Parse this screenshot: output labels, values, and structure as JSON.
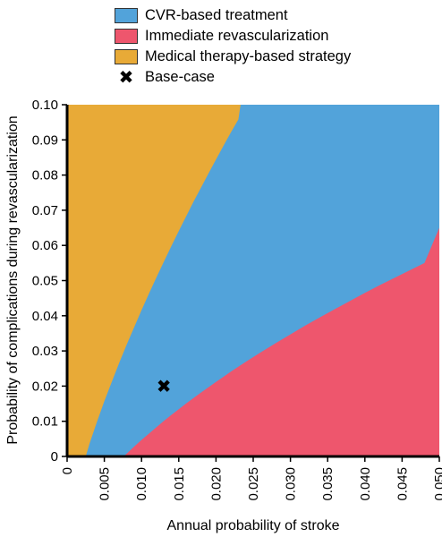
{
  "legend": {
    "items": [
      {
        "label": "CVR-based treatment",
        "color": "#52a3da",
        "kind": "swatch",
        "icon": ""
      },
      {
        "label": "Immediate revascularization",
        "color": "#ee566d",
        "kind": "swatch",
        "icon": ""
      },
      {
        "label": "Medical therapy-based strategy",
        "color": "#e8aa37",
        "kind": "swatch",
        "icon": ""
      },
      {
        "label": "Base-case",
        "color": "#000000",
        "kind": "marker",
        "icon": "✖"
      }
    ]
  },
  "chart_data": {
    "type": "area",
    "title": "",
    "xlabel": "Annual probability of stroke",
    "ylabel": "Probability of complications during revascularization",
    "xlim": [
      0,
      0.05
    ],
    "ylim": [
      0,
      0.1
    ],
    "xticks": [
      "0",
      "0.005",
      "0.010",
      "0.015",
      "0.020",
      "0.025",
      "0.030",
      "0.035",
      "0.040",
      "0.045",
      "0.050"
    ],
    "yticks": [
      "0",
      "0.01",
      "0.02",
      "0.03",
      "0.04",
      "0.05",
      "0.06",
      "0.07",
      "0.08",
      "0.09",
      "0.10"
    ],
    "regions": [
      {
        "name": "Medical therapy-based strategy",
        "color": "#e8aa37"
      },
      {
        "name": "CVR-based treatment",
        "color": "#52a3da"
      },
      {
        "name": "Immediate revascularization",
        "color": "#ee566d"
      }
    ],
    "boundaries": {
      "medical_vs_cvr": {
        "x": [
          0.0025,
          0.003,
          0.004,
          0.005,
          0.006,
          0.007,
          0.008,
          0.009,
          0.01,
          0.011,
          0.012,
          0.013,
          0.014,
          0.015,
          0.016,
          0.017,
          0.018,
          0.019,
          0.02,
          0.021,
          0.022,
          0.023,
          0.0233
        ],
        "y": [
          0.0,
          0.0036,
          0.0098,
          0.0157,
          0.0212,
          0.0266,
          0.0318,
          0.0367,
          0.0416,
          0.0463,
          0.0509,
          0.0554,
          0.0598,
          0.0641,
          0.0683,
          0.0725,
          0.0765,
          0.0805,
          0.0844,
          0.0883,
          0.0921,
          0.0958,
          0.1
        ]
      },
      "cvr_vs_immediate": {
        "x": [
          0.0076,
          0.008,
          0.009,
          0.01,
          0.011,
          0.012,
          0.013,
          0.014,
          0.015,
          0.016,
          0.018,
          0.02,
          0.022,
          0.024,
          0.026,
          0.028,
          0.03,
          0.032,
          0.034,
          0.036,
          0.038,
          0.04,
          0.042,
          0.044,
          0.046,
          0.048,
          0.05
        ],
        "y": [
          0.0,
          0.0008,
          0.0028,
          0.0047,
          0.0065,
          0.0083,
          0.0101,
          0.0118,
          0.0134,
          0.0151,
          0.0182,
          0.0212,
          0.0241,
          0.0269,
          0.0296,
          0.0322,
          0.0347,
          0.0372,
          0.0396,
          0.0419,
          0.0442,
          0.0465,
          0.0487,
          0.0508,
          0.0529,
          0.055,
          0.065
        ]
      }
    },
    "points": [
      {
        "label": "Base-case",
        "x": 0.013,
        "y": 0.02
      }
    ]
  }
}
